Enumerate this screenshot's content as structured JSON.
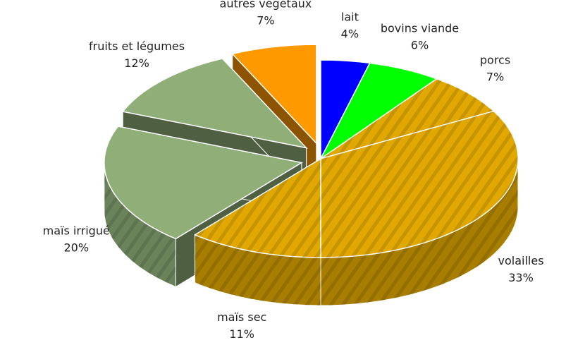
{
  "chart_data": {
    "type": "pie3d",
    "categories": [
      "lait",
      "bovins viande",
      "porcs",
      "volailles",
      "maïs sec",
      "maïs irrigué",
      "fruits et légumes",
      "autres végétaux"
    ],
    "values": [
      4,
      6,
      7,
      33,
      11,
      20,
      12,
      7
    ],
    "value_labels": [
      "4%",
      "6%",
      "7%",
      "33%",
      "11%",
      "20%",
      "12%",
      "7%"
    ],
    "colors": [
      "#0000ff",
      "#00ff00",
      "#e0a800",
      "#e0a800",
      "#e0a800",
      "#8fae78",
      "#8fae78",
      "#ff9900"
    ],
    "explode": [
      false,
      false,
      false,
      false,
      false,
      true,
      true,
      true
    ]
  }
}
